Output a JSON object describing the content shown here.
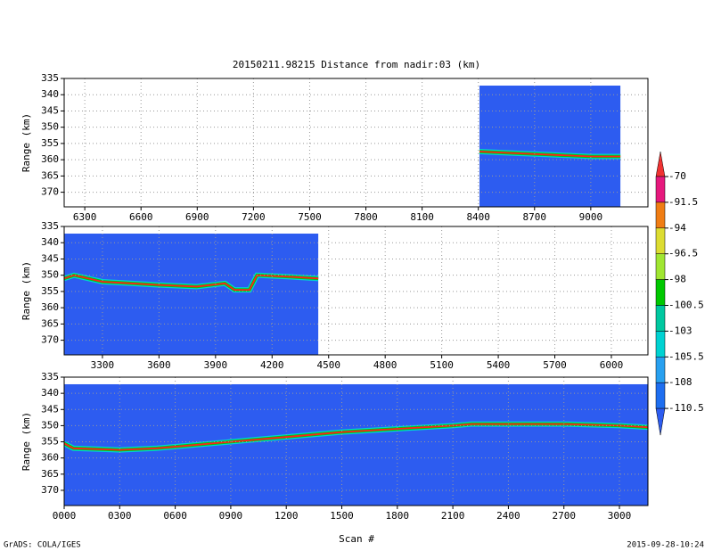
{
  "title": "20150211.98215    Distance from nadir:03 (km)",
  "xlabel": "Scan #",
  "footer_left": "GrADS: COLA/IGES",
  "footer_right": "2015-09-28-10:24",
  "background_color": "#2d5cf0",
  "colorbar": {
    "levels": [
      -70,
      -91.5,
      -94,
      -96.5,
      -98,
      -100.5,
      -103,
      -105.5,
      -108,
      -110.5
    ],
    "colors": [
      "#f03232",
      "#e6197d",
      "#f07d14",
      "#dcdc32",
      "#a0e632",
      "#00c800",
      "#00c8a0",
      "#00d2d2",
      "#28a0f0",
      "#1e6ef0",
      "#2d5cf0"
    ]
  },
  "chart_data": [
    {
      "type": "heatmap",
      "ylabel": "Range (km)",
      "y_inverted": true,
      "grid": true,
      "xlim": [
        6190,
        9305
      ],
      "ylim": [
        335,
        374.5
      ],
      "xticks": [
        6300,
        6600,
        6900,
        7200,
        7500,
        7800,
        8100,
        8400,
        8700,
        9000
      ],
      "yticks": [
        335,
        340,
        345,
        350,
        355,
        360,
        365,
        370
      ],
      "data_extent": {
        "x": [
          8406,
          9158
        ],
        "y": [
          337.2,
          374.5
        ]
      },
      "series": [
        {
          "name": "surface echo",
          "color": "#ff2020",
          "x": [
            8406,
            8600,
            8800,
            9000,
            9158
          ],
          "values": [
            357.5,
            358,
            358.5,
            359,
            359
          ]
        }
      ]
    },
    {
      "type": "heatmap",
      "ylabel": "Range (km)",
      "y_inverted": true,
      "grid": true,
      "xlim": [
        3097,
        6194
      ],
      "ylim": [
        335,
        374.5
      ],
      "xticks": [
        3300,
        3600,
        3900,
        4200,
        4500,
        4800,
        5100,
        5400,
        5700,
        6000
      ],
      "yticks": [
        335,
        340,
        345,
        350,
        355,
        360,
        365,
        370
      ],
      "data_extent": {
        "x": [
          3097,
          4445
        ],
        "y": [
          337.2,
          374.5
        ]
      },
      "series": [
        {
          "name": "surface echo",
          "color": "#ff2020",
          "x": [
            3097,
            3150,
            3300,
            3600,
            3800,
            3950,
            4000,
            4080,
            4120,
            4300,
            4445
          ],
          "values": [
            351,
            350,
            352,
            353,
            353.5,
            352.5,
            354.5,
            354.5,
            350,
            350.5,
            351
          ]
        }
      ]
    },
    {
      "type": "heatmap",
      "ylabel": "Range (km)",
      "y_inverted": true,
      "grid": true,
      "xlim": [
        0,
        3154
      ],
      "ylim": [
        335,
        374.7
      ],
      "xticks": [
        {
          "value": 0,
          "label": "0000"
        },
        {
          "value": 300,
          "label": "0300"
        },
        {
          "value": 600,
          "label": "0600"
        },
        {
          "value": 900,
          "label": "0900"
        },
        1200,
        1500,
        1800,
        2100,
        2400,
        2700,
        3000
      ],
      "yticks": [
        335,
        340,
        345,
        350,
        355,
        360,
        365,
        370
      ],
      "data_extent": {
        "x": [
          0,
          3154
        ],
        "y": [
          337.2,
          374.7
        ]
      },
      "series": [
        {
          "name": "surface echo",
          "color": "#ff2020",
          "x": [
            0,
            50,
            300,
            500,
            900,
            1500,
            2100,
            2200,
            2700,
            3000,
            3154
          ],
          "values": [
            355.5,
            357,
            357.5,
            357,
            355,
            352,
            350,
            349.5,
            349.5,
            350,
            350.5
          ]
        }
      ]
    }
  ]
}
